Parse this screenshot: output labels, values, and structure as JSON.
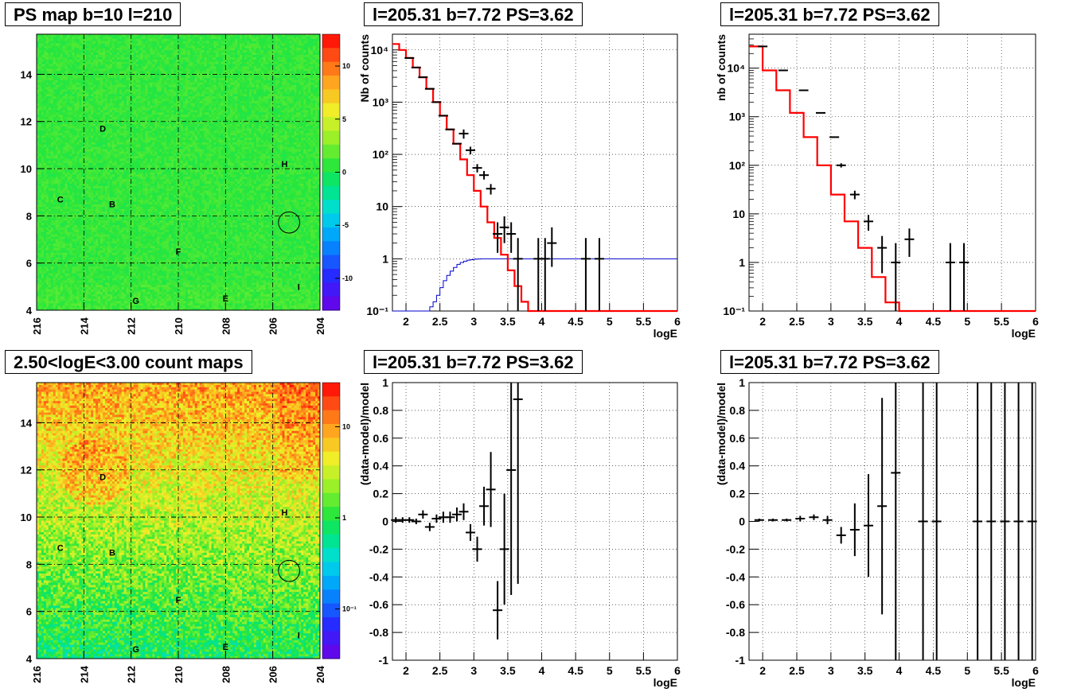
{
  "titles": {
    "ps_map": "PS map b=10 l=210",
    "count_map": "2.50<logE<3.00 count maps",
    "spec_left": "l=205.31 b=7.72 PS=3.62",
    "spec_right": "l=205.31 b=7.72 PS=3.62",
    "resid_left": "l=205.31 b=7.72 PS=3.62",
    "resid_right": "l=205.31 b=7.72 PS=3.62"
  },
  "colors": {
    "model": "#ff0000",
    "efficiency": "#0000cc",
    "data": "#000000"
  },
  "chart_data": [
    {
      "id": "ps_map",
      "type": "heatmap",
      "xticks": [
        "216",
        "214",
        "212",
        "210",
        "208",
        "206",
        "204"
      ],
      "yticks": [
        "4",
        "6",
        "8",
        "10",
        "12",
        "14"
      ],
      "xlim": [
        216,
        204
      ],
      "ylim": [
        4,
        15.7
      ],
      "colorbar_ticks": [
        "10",
        "5",
        "0",
        "-5",
        "-10"
      ],
      "colorbar_range": [
        -13,
        13
      ],
      "base_value": 0.5,
      "source_labels": [
        {
          "label": "D",
          "l": 213.2,
          "b": 11.7
        },
        {
          "label": "H",
          "l": 205.5,
          "b": 10.2
        },
        {
          "label": "C",
          "l": 215.0,
          "b": 8.7
        },
        {
          "label": "B",
          "l": 212.8,
          "b": 8.5
        },
        {
          "label": "F",
          "l": 210.0,
          "b": 6.5
        },
        {
          "label": "G",
          "l": 211.8,
          "b": 4.4
        },
        {
          "label": "E",
          "l": 208.0,
          "b": 4.5
        },
        {
          "label": "I",
          "l": 204.9,
          "b": 5.0
        }
      ],
      "circle": {
        "l": 205.31,
        "b": 7.72,
        "r": 0.45
      }
    },
    {
      "id": "count_map",
      "type": "heatmap",
      "xticks": [
        "216",
        "214",
        "212",
        "210",
        "208",
        "206",
        "204"
      ],
      "yticks": [
        "4",
        "6",
        "8",
        "10",
        "12",
        "14"
      ],
      "xlim": [
        216,
        204
      ],
      "ylim": [
        4,
        15.7
      ],
      "colorbar_ticks": [
        "10",
        "1",
        "10⁻¹"
      ],
      "log_scale": true,
      "source_labels": [
        {
          "label": "D",
          "l": 213.2,
          "b": 11.7
        },
        {
          "label": "H",
          "l": 205.5,
          "b": 10.2
        },
        {
          "label": "C",
          "l": 215.0,
          "b": 8.7
        },
        {
          "label": "B",
          "l": 212.8,
          "b": 8.5
        },
        {
          "label": "F",
          "l": 210.0,
          "b": 6.5
        },
        {
          "label": "G",
          "l": 211.8,
          "b": 4.4
        },
        {
          "label": "E",
          "l": 208.0,
          "b": 4.5
        },
        {
          "label": "I",
          "l": 204.9,
          "b": 5.0
        }
      ],
      "circle": {
        "l": 205.31,
        "b": 7.72,
        "r": 0.45
      }
    },
    {
      "id": "spec_left",
      "type": "line",
      "xlabel": "logE",
      "ylabel": "Nb of counts",
      "xlim": [
        1.8,
        6.0
      ],
      "ylim": [
        0.1,
        20000
      ],
      "log_y": true,
      "xticks": [
        "2",
        "2.5",
        "3",
        "3.5",
        "4",
        "4.5",
        "5",
        "5.5",
        "6"
      ],
      "yticks": [
        "10⁻¹",
        "1",
        "10",
        "10²",
        "10³",
        "10⁴"
      ],
      "grid": true,
      "model_bins": {
        "x0": 1.8,
        "dx": 0.1,
        "values": [
          13000,
          10000,
          7000,
          4600,
          3000,
          1800,
          1000,
          550,
          300,
          160,
          80,
          40,
          20,
          10,
          5,
          2.5,
          1.2,
          0.6,
          0.3,
          0.15,
          0.1,
          0.1,
          0.1,
          0.1,
          0.1,
          0.1,
          0.1,
          0.1,
          0.1,
          0.1,
          0.1,
          0.1,
          0.1,
          0.1,
          0.1,
          0.1,
          0.1,
          0.1,
          0.1,
          0.1,
          0.1,
          0.1
        ]
      },
      "efficiency_bins": {
        "x0": 1.8,
        "dx": 0.05,
        "values": [
          0.1,
          0.1,
          0.1,
          0.1,
          0.1,
          0.1,
          0.1,
          0.1,
          0.1,
          0.1,
          0.1,
          0.12,
          0.15,
          0.2,
          0.28,
          0.38,
          0.48,
          0.58,
          0.68,
          0.78,
          0.85,
          0.9,
          0.94,
          0.96,
          0.98,
          0.99,
          1,
          1,
          1,
          1,
          1,
          1,
          1,
          1,
          1,
          1,
          1,
          1,
          1,
          1,
          1,
          1,
          1,
          1,
          1,
          1,
          1,
          1,
          1,
          1,
          1,
          1,
          1,
          1,
          1,
          1,
          1,
          1,
          1,
          1,
          1,
          1,
          1,
          1,
          1,
          1,
          1,
          1,
          1,
          1,
          1,
          1,
          1,
          1,
          1,
          1,
          1,
          1,
          1,
          1,
          1,
          1,
          1,
          1,
          1
        ]
      },
      "points": [
        {
          "x": 2.05,
          "y": 7000
        },
        {
          "x": 2.15,
          "y": 4600
        },
        {
          "x": 2.25,
          "y": 3000
        },
        {
          "x": 2.35,
          "y": 1800
        },
        {
          "x": 2.45,
          "y": 1000
        },
        {
          "x": 2.55,
          "y": 550
        },
        {
          "x": 2.65,
          "y": 300
        },
        {
          "x": 2.75,
          "y": 160
        },
        {
          "x": 2.85,
          "y": 250,
          "lo": 200,
          "hi": 300
        },
        {
          "x": 2.95,
          "y": 120,
          "lo": 100,
          "hi": 140
        },
        {
          "x": 3.05,
          "y": 55,
          "lo": 45,
          "hi": 65
        },
        {
          "x": 3.15,
          "y": 40,
          "lo": 33,
          "hi": 48
        },
        {
          "x": 3.25,
          "y": 22,
          "lo": 17,
          "hi": 27
        },
        {
          "x": 3.35,
          "y": 3,
          "lo": 1.3,
          "hi": 5
        },
        {
          "x": 3.45,
          "y": 4,
          "lo": 2,
          "hi": 6.5
        },
        {
          "x": 3.55,
          "y": 3,
          "lo": 1.3,
          "hi": 5
        },
        {
          "x": 3.65,
          "y": 1,
          "lo": 0.1,
          "hi": 2.5
        },
        {
          "x": 3.95,
          "y": 1,
          "lo": 0.1,
          "hi": 2.5
        },
        {
          "x": 4.05,
          "y": 1,
          "lo": 0.1,
          "hi": 2.5
        },
        {
          "x": 4.15,
          "y": 2,
          "lo": 0.7,
          "hi": 4
        },
        {
          "x": 4.65,
          "y": 1,
          "lo": 0.1,
          "hi": 2.5
        },
        {
          "x": 4.85,
          "y": 1,
          "lo": 0.1,
          "hi": 2.5
        }
      ]
    },
    {
      "id": "spec_right",
      "type": "line",
      "xlabel": "logE",
      "ylabel": "nb of counts",
      "xlim": [
        1.8,
        6.0
      ],
      "ylim": [
        0.1,
        50000
      ],
      "log_y": true,
      "xticks": [
        "2",
        "2.5",
        "3",
        "3.5",
        "4",
        "4.5",
        "5",
        "5.5",
        "6"
      ],
      "yticks": [
        "10⁻¹",
        "1",
        "10",
        "10²",
        "10³",
        "10⁴"
      ],
      "grid": true,
      "model_bins": {
        "x0": 1.8,
        "dx": 0.2,
        "values": [
          28000,
          9000,
          3500,
          1200,
          380,
          100,
          25,
          7,
          2,
          0.5,
          0.15,
          0.1,
          0.1,
          0.1,
          0.1,
          0.1,
          0.1,
          0.1,
          0.1,
          0.1,
          0.1
        ]
      },
      "points": [
        {
          "x": 2.0,
          "y": 28000
        },
        {
          "x": 2.3,
          "y": 9000
        },
        {
          "x": 2.6,
          "y": 3500
        },
        {
          "x": 2.85,
          "y": 1200
        },
        {
          "x": 3.05,
          "y": 380
        },
        {
          "x": 3.15,
          "y": 100,
          "lo": 90,
          "hi": 110
        },
        {
          "x": 3.35,
          "y": 25,
          "lo": 20,
          "hi": 30
        },
        {
          "x": 3.55,
          "y": 7,
          "lo": 4.5,
          "hi": 9.5
        },
        {
          "x": 3.75,
          "y": 2,
          "lo": 0.6,
          "hi": 3.5
        },
        {
          "x": 3.95,
          "y": 1,
          "lo": 0.1,
          "hi": 2.5
        },
        {
          "x": 4.15,
          "y": 3,
          "lo": 1.3,
          "hi": 5
        },
        {
          "x": 4.75,
          "y": 1,
          "lo": 0.1,
          "hi": 2.5
        },
        {
          "x": 4.95,
          "y": 1,
          "lo": 0.1,
          "hi": 2.5
        }
      ]
    },
    {
      "id": "resid_left",
      "type": "scatter",
      "xlabel": "logE",
      "ylabel": "(data-model)/model",
      "xlim": [
        1.8,
        6.0
      ],
      "ylim": [
        -1,
        1
      ],
      "xticks": [
        "2",
        "2.5",
        "3",
        "3.5",
        "4",
        "4.5",
        "5",
        "5.5",
        "6"
      ],
      "yticks": [
        "-1",
        "-0.8",
        "-0.6",
        "-0.4",
        "-0.2",
        "0",
        "0.2",
        "0.4",
        "0.6",
        "0.8",
        "1"
      ],
      "grid": true,
      "points": [
        {
          "x": 1.85,
          "y": 0.01,
          "e": 0.02
        },
        {
          "x": 1.95,
          "y": 0.01,
          "e": 0.02
        },
        {
          "x": 2.05,
          "y": 0.01,
          "e": 0.02
        },
        {
          "x": 2.15,
          "y": 0.0,
          "e": 0.02
        },
        {
          "x": 2.25,
          "y": 0.05,
          "e": 0.03
        },
        {
          "x": 2.35,
          "y": -0.04,
          "e": 0.03
        },
        {
          "x": 2.45,
          "y": 0.02,
          "e": 0.03
        },
        {
          "x": 2.55,
          "y": 0.03,
          "e": 0.04
        },
        {
          "x": 2.65,
          "y": 0.03,
          "e": 0.04
        },
        {
          "x": 2.75,
          "y": 0.05,
          "e": 0.05
        },
        {
          "x": 2.85,
          "y": 0.07,
          "e": 0.06
        },
        {
          "x": 2.95,
          "y": -0.08,
          "e": 0.06
        },
        {
          "x": 3.05,
          "y": -0.2,
          "e": 0.09
        },
        {
          "x": 3.15,
          "y": 0.11,
          "e": 0.14
        },
        {
          "x": 3.25,
          "y": 0.23,
          "e": 0.27
        },
        {
          "x": 3.35,
          "y": -0.64,
          "e": 0.21
        },
        {
          "x": 3.45,
          "y": -0.2,
          "e": 0.4
        },
        {
          "x": 3.55,
          "y": 0.37,
          "e": 0.9
        },
        {
          "x": 3.65,
          "y": 0.88,
          "e": 1.33
        }
      ]
    },
    {
      "id": "resid_right",
      "type": "scatter",
      "xlabel": "logE",
      "ylabel": "(data-model)/model",
      "xlim": [
        1.8,
        6.0
      ],
      "ylim": [
        -1,
        1
      ],
      "xticks": [
        "2",
        "2.5",
        "3",
        "3.5",
        "4",
        "4.5",
        "5",
        "5.5",
        "6"
      ],
      "yticks": [
        "-1",
        "-0.8",
        "-0.6",
        "-0.4",
        "-0.2",
        "0",
        "0.2",
        "0.4",
        "0.6",
        "0.8",
        "1"
      ],
      "grid": true,
      "points": [
        {
          "x": 1.95,
          "y": 0.01,
          "e": 0.01
        },
        {
          "x": 2.15,
          "y": 0.01,
          "e": 0.01
        },
        {
          "x": 2.35,
          "y": 0.01,
          "e": 0.01
        },
        {
          "x": 2.55,
          "y": 0.02,
          "e": 0.02
        },
        {
          "x": 2.75,
          "y": 0.03,
          "e": 0.02
        },
        {
          "x": 2.95,
          "y": 0.01,
          "e": 0.03
        },
        {
          "x": 3.15,
          "y": -0.1,
          "e": 0.06
        },
        {
          "x": 3.35,
          "y": -0.06,
          "e": 0.19
        },
        {
          "x": 3.55,
          "y": -0.03,
          "e": 0.37
        },
        {
          "x": 3.75,
          "y": 0.11,
          "e": 0.78
        },
        {
          "x": 3.95,
          "y": 0.35,
          "e": 1.5
        },
        {
          "x": 4.35,
          "y": 0,
          "e": 2
        },
        {
          "x": 4.55,
          "y": 0,
          "e": 2
        },
        {
          "x": 5.15,
          "y": 0,
          "e": 2
        },
        {
          "x": 5.35,
          "y": 0,
          "e": 2
        },
        {
          "x": 5.55,
          "y": 0,
          "e": 2
        },
        {
          "x": 5.75,
          "y": 0,
          "e": 2
        },
        {
          "x": 5.95,
          "y": 0,
          "e": 2
        }
      ]
    }
  ]
}
